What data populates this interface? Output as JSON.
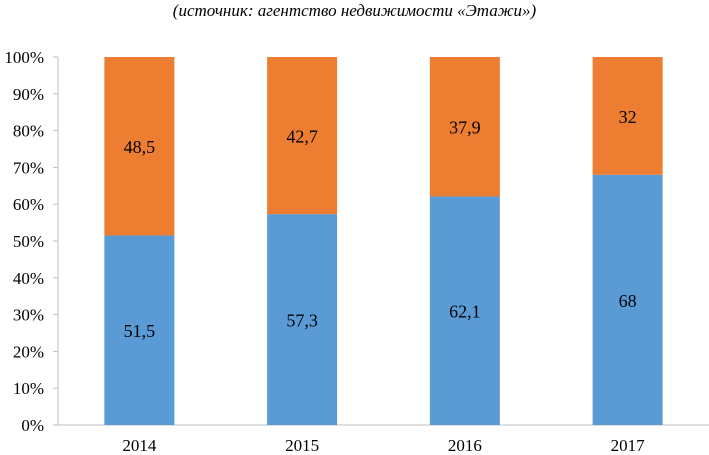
{
  "chart_data": {
    "type": "bar",
    "stacked": true,
    "subtitle": "(источник: агентство недвижимости «Этажи»)",
    "categories": [
      "2014",
      "2015",
      "2016",
      "2017"
    ],
    "series": [
      {
        "values": [
          51.5,
          57.3,
          62.1,
          68
        ],
        "labels": [
          "51,5",
          "57,3",
          "62,1",
          "68"
        ],
        "color": "#5b9bd5"
      },
      {
        "values": [
          48.5,
          42.7,
          37.9,
          32
        ],
        "labels": [
          "48,5",
          "42,7",
          "37,9",
          "32"
        ],
        "color": "#ed7d31"
      }
    ],
    "y_ticks": [
      "0%",
      "10%",
      "20%",
      "30%",
      "40%",
      "50%",
      "60%",
      "70%",
      "80%",
      "90%",
      "100%"
    ],
    "ylim": [
      0,
      100
    ],
    "grid": false,
    "legend": "none"
  }
}
